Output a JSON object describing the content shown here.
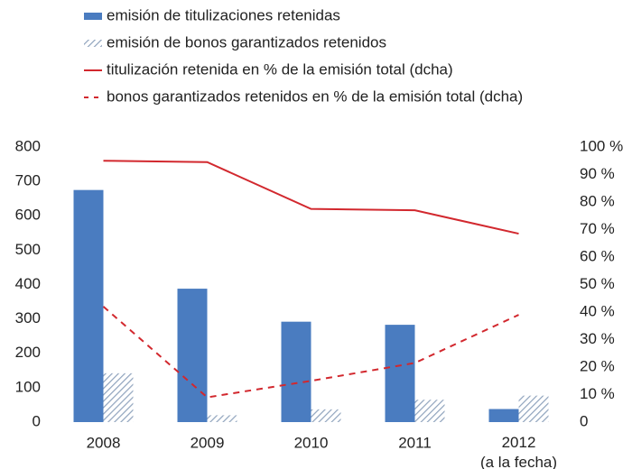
{
  "chart_data": {
    "type": "bar",
    "categories": [
      "2008",
      "2009",
      "2010",
      "2011",
      "2012\n(a la fecha)"
    ],
    "series": [
      {
        "name": "emisión de titulizaciones retenidas",
        "color": "#4a7cc0",
        "style": "solid",
        "values": [
          675,
          388,
          292,
          283,
          38
        ]
      },
      {
        "name": "emisión de bonos garantizados retenidos",
        "color": "#8fa3bd",
        "style": "hatched",
        "values": [
          142,
          20,
          37,
          65,
          77
        ]
      },
      {
        "name": "titulización retenida en % de la emisión total (dcha)",
        "type": "line",
        "axis": "y2",
        "color": "#d2282e",
        "style": "solid",
        "values": [
          95,
          94.5,
          77.5,
          77,
          68.5
        ]
      },
      {
        "name": "bonos garantizados retenidos en % de la emisión total (dcha)",
        "type": "line",
        "axis": "y2",
        "color": "#d2282e",
        "style": "dashed",
        "values": [
          42,
          9,
          15,
          21.5,
          39
        ]
      }
    ],
    "ylim": [
      0,
      800
    ],
    "yticks": [
      0,
      100,
      200,
      300,
      400,
      500,
      600,
      700,
      800
    ],
    "y2lim": [
      0,
      100
    ],
    "y2ticks": [
      0,
      {
        "value": 10,
        "label": "10 %"
      },
      {
        "value": 20,
        "label": "20 %"
      },
      {
        "value": 30,
        "label": "30 %"
      },
      {
        "value": 40,
        "label": "40 %"
      },
      {
        "value": 50,
        "label": "50 %"
      },
      {
        "value": 60,
        "label": "60 %"
      },
      {
        "value": 70,
        "label": "70 %"
      },
      {
        "value": 80,
        "label": "80 %"
      },
      {
        "value": 90,
        "label": "90 %"
      },
      {
        "value": 100,
        "label": "100 %"
      }
    ],
    "grid": false,
    "legend": "top"
  }
}
